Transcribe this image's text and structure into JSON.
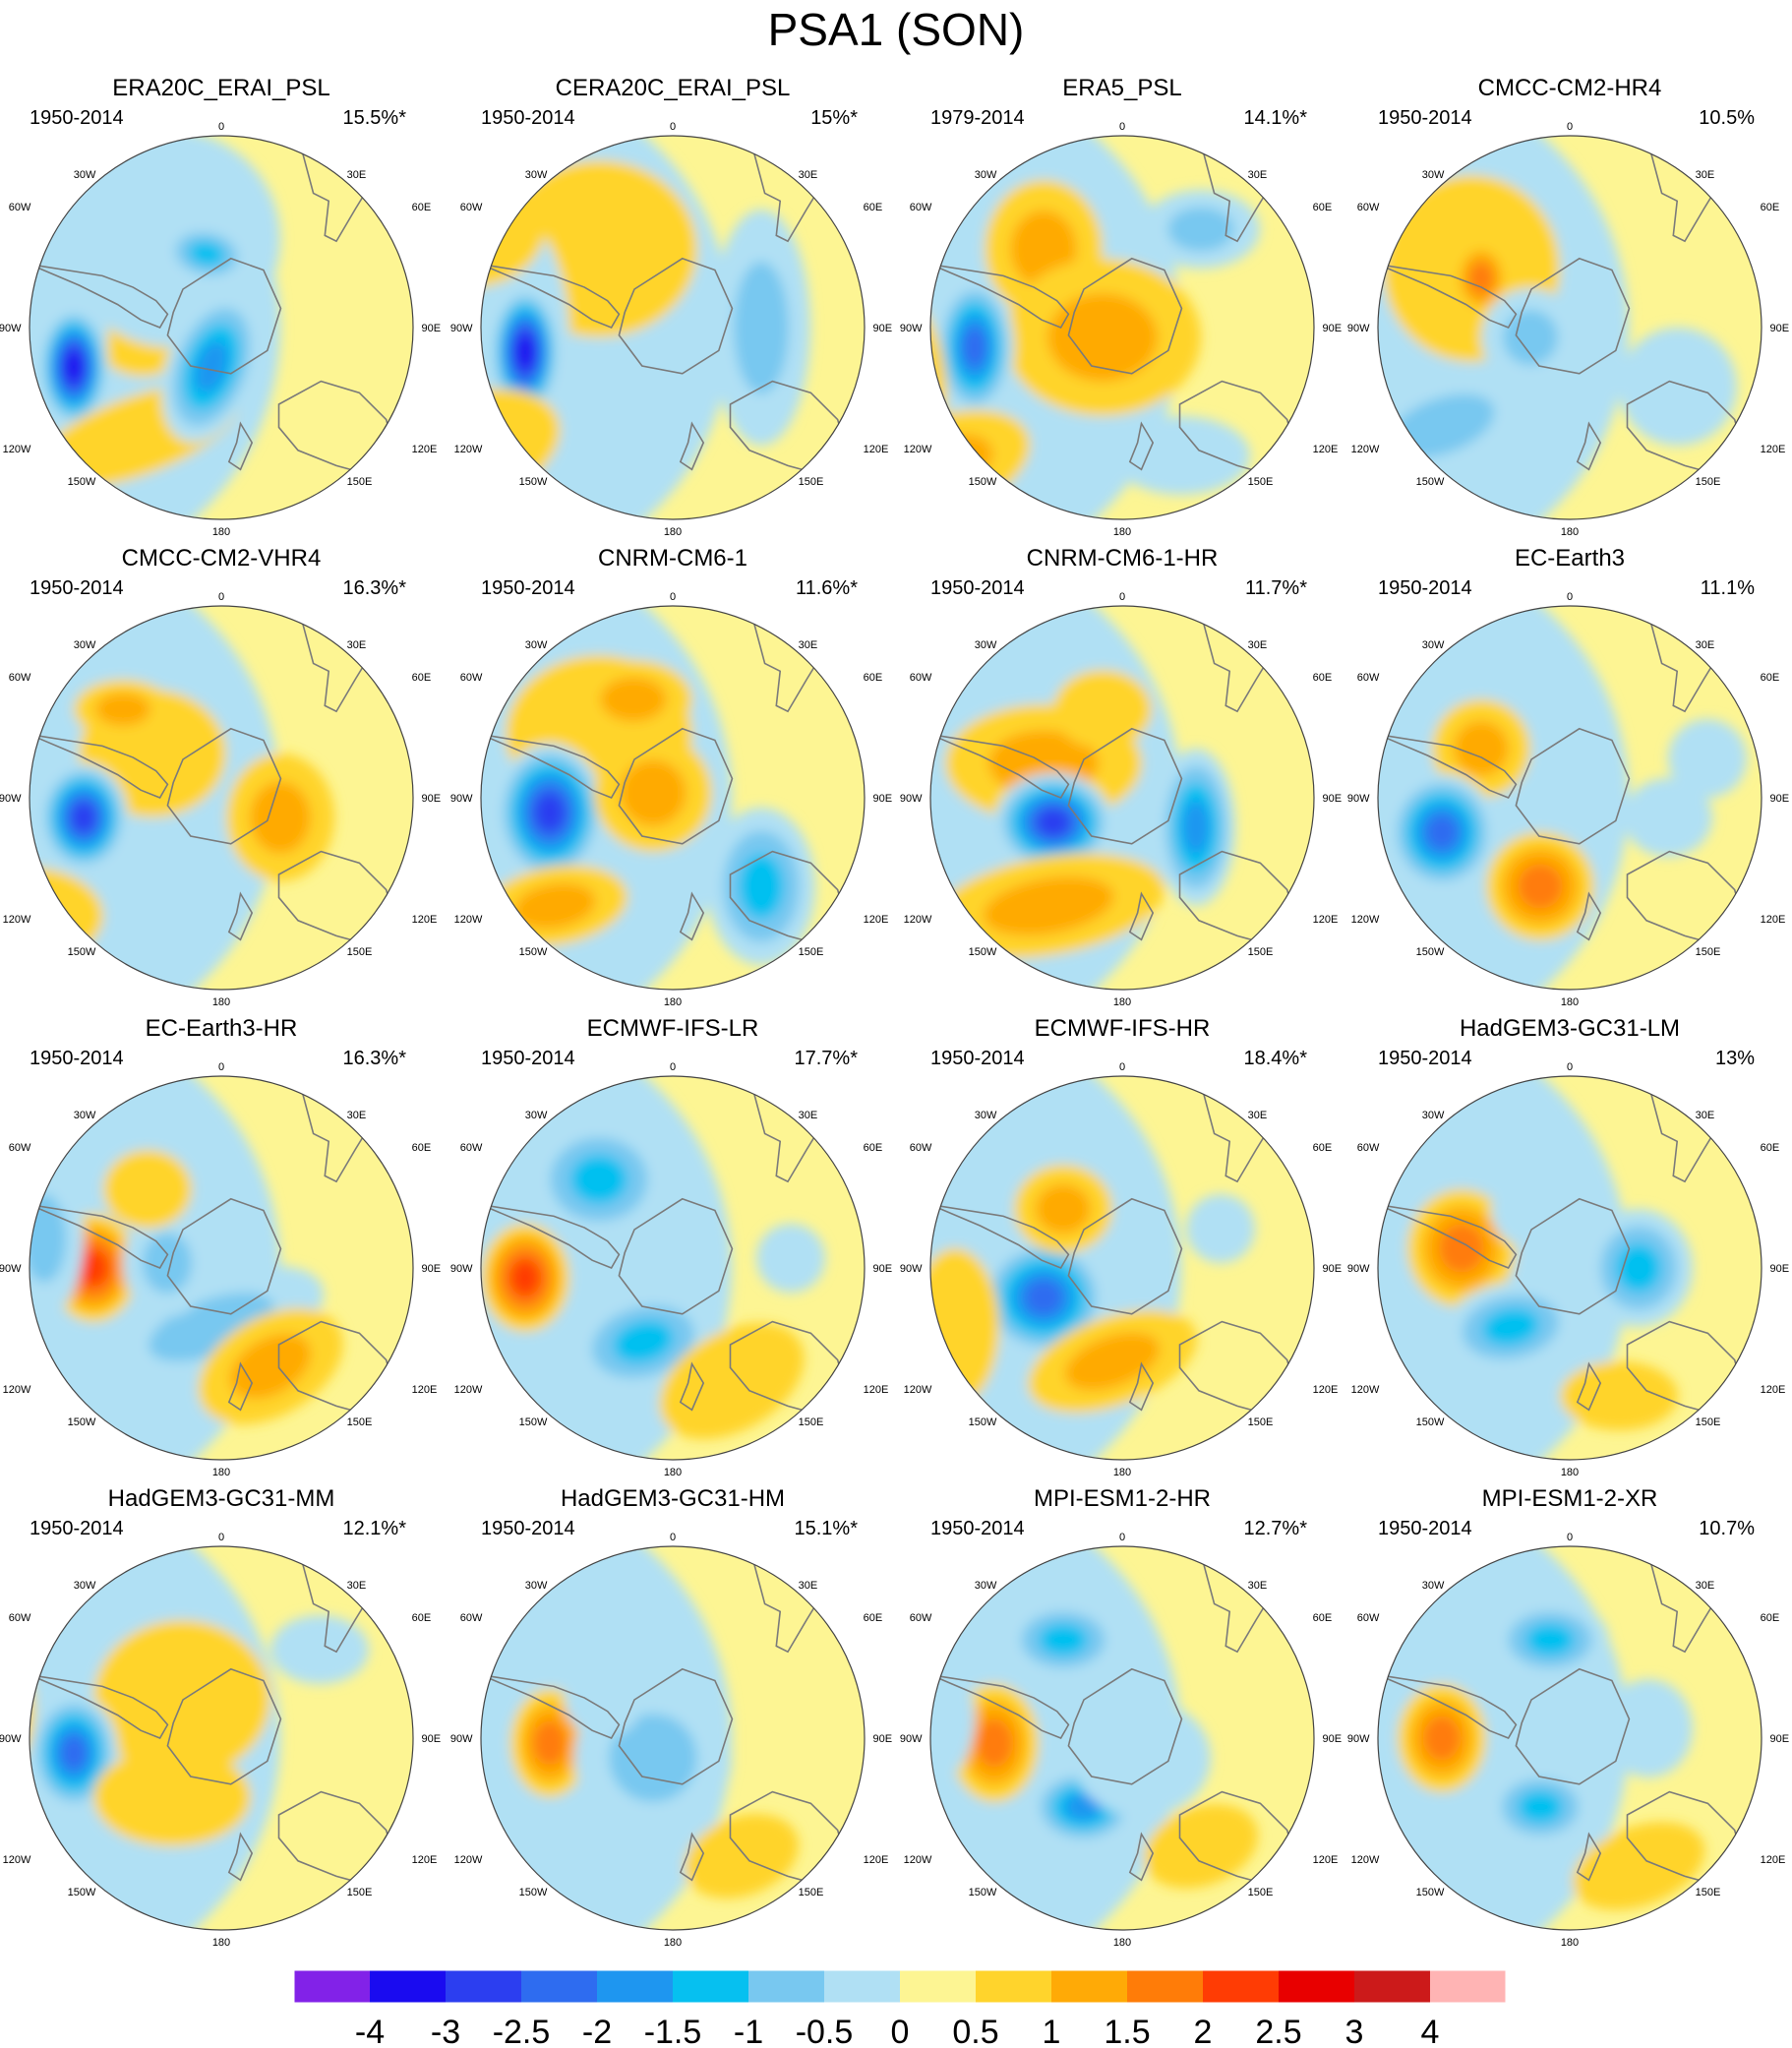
{
  "title": "PSA1 (SON)",
  "degree_labels": {
    "top": "0",
    "bottom": "180",
    "left_top": "30W",
    "left_60": "60W",
    "left_90": "90W",
    "left_120": "120W",
    "left_150": "150W",
    "right_top": "30E",
    "right_60": "60E",
    "right_90": "90E",
    "right_120": "120E",
    "right_150": "150E"
  },
  "panels": [
    {
      "name": "ERA20C_ERAI_PSL",
      "period": "1950-2014",
      "variance": "15.5%*"
    },
    {
      "name": "CERA20C_ERAI_PSL",
      "period": "1950-2014",
      "variance": "15%*"
    },
    {
      "name": "ERA5_PSL",
      "period": "1979-2014",
      "variance": "14.1%*"
    },
    {
      "name": "CMCC-CM2-HR4",
      "period": "1950-2014",
      "variance": "10.5%"
    },
    {
      "name": "CMCC-CM2-VHR4",
      "period": "1950-2014",
      "variance": "16.3%*"
    },
    {
      "name": "CNRM-CM6-1",
      "period": "1950-2014",
      "variance": "11.6%*"
    },
    {
      "name": "CNRM-CM6-1-HR",
      "period": "1950-2014",
      "variance": "11.7%*"
    },
    {
      "name": "EC-Earth3",
      "period": "1950-2014",
      "variance": "11.1%"
    },
    {
      "name": "EC-Earth3-HR",
      "period": "1950-2014",
      "variance": "16.3%*"
    },
    {
      "name": "ECMWF-IFS-LR",
      "period": "1950-2014",
      "variance": "17.7%*"
    },
    {
      "name": "ECMWF-IFS-HR",
      "period": "1950-2014",
      "variance": "18.4%*"
    },
    {
      "name": "HadGEM3-GC31-LM",
      "period": "1950-2014",
      "variance": "13%"
    },
    {
      "name": "HadGEM3-GC31-MM",
      "period": "1950-2014",
      "variance": "12.1%*"
    },
    {
      "name": "HadGEM3-GC31-HM",
      "period": "1950-2014",
      "variance": "15.1%*"
    },
    {
      "name": "MPI-ESM1-2-HR",
      "period": "1950-2014",
      "variance": "12.7%*"
    },
    {
      "name": "MPI-ESM1-2-XR",
      "period": "1950-2014",
      "variance": "10.7%"
    }
  ],
  "colorbar": {
    "colors": [
      "#8222e8",
      "#1a0bf0",
      "#2c3ef0",
      "#2e6cf0",
      "#1e96f0",
      "#06c0f0",
      "#78c8f0",
      "#b0e0f4",
      "#fdf593",
      "#ffd42c",
      "#ffaa06",
      "#ff7c08",
      "#ff3c04",
      "#e80000",
      "#cc1a1a",
      "#ffb4b4"
    ],
    "labels": [
      "-4",
      "-3",
      "-2.5",
      "-2",
      "-1.5",
      "-1",
      "-0.5",
      "0",
      "0.5",
      "1",
      "1.5",
      "2",
      "2.5",
      "3",
      "4"
    ]
  },
  "colors": {
    "ocean_background": "#fdf593",
    "coastline": "#7a7a7a",
    "frame": "#444444"
  }
}
